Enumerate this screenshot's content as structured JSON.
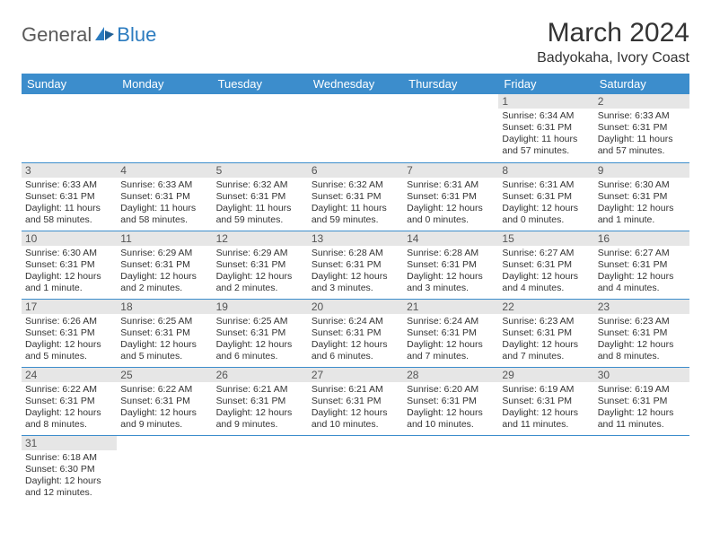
{
  "logo": {
    "part1": "General",
    "part2": "Blue"
  },
  "title": "March 2024",
  "location": "Badyokaha, Ivory Coast",
  "header_bg": "#3c8dcc",
  "header_fg": "#ffffff",
  "daynum_bg": "#e6e6e6",
  "row_border": "#3c8dcc",
  "weekdays": [
    "Sunday",
    "Monday",
    "Tuesday",
    "Wednesday",
    "Thursday",
    "Friday",
    "Saturday"
  ],
  "weeks": [
    [
      null,
      null,
      null,
      null,
      null,
      {
        "n": "1",
        "sunrise": "Sunrise: 6:34 AM",
        "sunset": "Sunset: 6:31 PM",
        "daylight": "Daylight: 11 hours and 57 minutes."
      },
      {
        "n": "2",
        "sunrise": "Sunrise: 6:33 AM",
        "sunset": "Sunset: 6:31 PM",
        "daylight": "Daylight: 11 hours and 57 minutes."
      }
    ],
    [
      {
        "n": "3",
        "sunrise": "Sunrise: 6:33 AM",
        "sunset": "Sunset: 6:31 PM",
        "daylight": "Daylight: 11 hours and 58 minutes."
      },
      {
        "n": "4",
        "sunrise": "Sunrise: 6:33 AM",
        "sunset": "Sunset: 6:31 PM",
        "daylight": "Daylight: 11 hours and 58 minutes."
      },
      {
        "n": "5",
        "sunrise": "Sunrise: 6:32 AM",
        "sunset": "Sunset: 6:31 PM",
        "daylight": "Daylight: 11 hours and 59 minutes."
      },
      {
        "n": "6",
        "sunrise": "Sunrise: 6:32 AM",
        "sunset": "Sunset: 6:31 PM",
        "daylight": "Daylight: 11 hours and 59 minutes."
      },
      {
        "n": "7",
        "sunrise": "Sunrise: 6:31 AM",
        "sunset": "Sunset: 6:31 PM",
        "daylight": "Daylight: 12 hours and 0 minutes."
      },
      {
        "n": "8",
        "sunrise": "Sunrise: 6:31 AM",
        "sunset": "Sunset: 6:31 PM",
        "daylight": "Daylight: 12 hours and 0 minutes."
      },
      {
        "n": "9",
        "sunrise": "Sunrise: 6:30 AM",
        "sunset": "Sunset: 6:31 PM",
        "daylight": "Daylight: 12 hours and 1 minute."
      }
    ],
    [
      {
        "n": "10",
        "sunrise": "Sunrise: 6:30 AM",
        "sunset": "Sunset: 6:31 PM",
        "daylight": "Daylight: 12 hours and 1 minute."
      },
      {
        "n": "11",
        "sunrise": "Sunrise: 6:29 AM",
        "sunset": "Sunset: 6:31 PM",
        "daylight": "Daylight: 12 hours and 2 minutes."
      },
      {
        "n": "12",
        "sunrise": "Sunrise: 6:29 AM",
        "sunset": "Sunset: 6:31 PM",
        "daylight": "Daylight: 12 hours and 2 minutes."
      },
      {
        "n": "13",
        "sunrise": "Sunrise: 6:28 AM",
        "sunset": "Sunset: 6:31 PM",
        "daylight": "Daylight: 12 hours and 3 minutes."
      },
      {
        "n": "14",
        "sunrise": "Sunrise: 6:28 AM",
        "sunset": "Sunset: 6:31 PM",
        "daylight": "Daylight: 12 hours and 3 minutes."
      },
      {
        "n": "15",
        "sunrise": "Sunrise: 6:27 AM",
        "sunset": "Sunset: 6:31 PM",
        "daylight": "Daylight: 12 hours and 4 minutes."
      },
      {
        "n": "16",
        "sunrise": "Sunrise: 6:27 AM",
        "sunset": "Sunset: 6:31 PM",
        "daylight": "Daylight: 12 hours and 4 minutes."
      }
    ],
    [
      {
        "n": "17",
        "sunrise": "Sunrise: 6:26 AM",
        "sunset": "Sunset: 6:31 PM",
        "daylight": "Daylight: 12 hours and 5 minutes."
      },
      {
        "n": "18",
        "sunrise": "Sunrise: 6:25 AM",
        "sunset": "Sunset: 6:31 PM",
        "daylight": "Daylight: 12 hours and 5 minutes."
      },
      {
        "n": "19",
        "sunrise": "Sunrise: 6:25 AM",
        "sunset": "Sunset: 6:31 PM",
        "daylight": "Daylight: 12 hours and 6 minutes."
      },
      {
        "n": "20",
        "sunrise": "Sunrise: 6:24 AM",
        "sunset": "Sunset: 6:31 PM",
        "daylight": "Daylight: 12 hours and 6 minutes."
      },
      {
        "n": "21",
        "sunrise": "Sunrise: 6:24 AM",
        "sunset": "Sunset: 6:31 PM",
        "daylight": "Daylight: 12 hours and 7 minutes."
      },
      {
        "n": "22",
        "sunrise": "Sunrise: 6:23 AM",
        "sunset": "Sunset: 6:31 PM",
        "daylight": "Daylight: 12 hours and 7 minutes."
      },
      {
        "n": "23",
        "sunrise": "Sunrise: 6:23 AM",
        "sunset": "Sunset: 6:31 PM",
        "daylight": "Daylight: 12 hours and 8 minutes."
      }
    ],
    [
      {
        "n": "24",
        "sunrise": "Sunrise: 6:22 AM",
        "sunset": "Sunset: 6:31 PM",
        "daylight": "Daylight: 12 hours and 8 minutes."
      },
      {
        "n": "25",
        "sunrise": "Sunrise: 6:22 AM",
        "sunset": "Sunset: 6:31 PM",
        "daylight": "Daylight: 12 hours and 9 minutes."
      },
      {
        "n": "26",
        "sunrise": "Sunrise: 6:21 AM",
        "sunset": "Sunset: 6:31 PM",
        "daylight": "Daylight: 12 hours and 9 minutes."
      },
      {
        "n": "27",
        "sunrise": "Sunrise: 6:21 AM",
        "sunset": "Sunset: 6:31 PM",
        "daylight": "Daylight: 12 hours and 10 minutes."
      },
      {
        "n": "28",
        "sunrise": "Sunrise: 6:20 AM",
        "sunset": "Sunset: 6:31 PM",
        "daylight": "Daylight: 12 hours and 10 minutes."
      },
      {
        "n": "29",
        "sunrise": "Sunrise: 6:19 AM",
        "sunset": "Sunset: 6:31 PM",
        "daylight": "Daylight: 12 hours and 11 minutes."
      },
      {
        "n": "30",
        "sunrise": "Sunrise: 6:19 AM",
        "sunset": "Sunset: 6:31 PM",
        "daylight": "Daylight: 12 hours and 11 minutes."
      }
    ],
    [
      {
        "n": "31",
        "sunrise": "Sunrise: 6:18 AM",
        "sunset": "Sunset: 6:30 PM",
        "daylight": "Daylight: 12 hours and 12 minutes."
      },
      null,
      null,
      null,
      null,
      null,
      null
    ]
  ]
}
